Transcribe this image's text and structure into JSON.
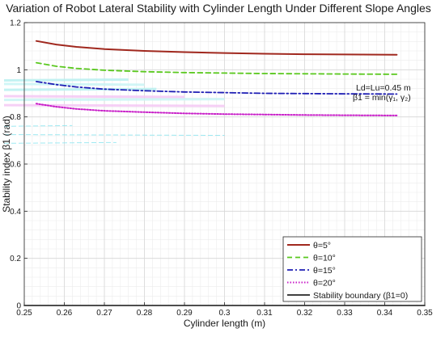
{
  "chart_data": {
    "type": "line",
    "title": "Variation of Robot Lateral Stability with Cylinder Length Under Different Slope Angles",
    "xlabel": "Cylinder length (m)",
    "ylabel": "Stability index β1 (rad)",
    "xlim": [
      0.25,
      0.35
    ],
    "ylim": [
      0,
      1.2
    ],
    "xticks": [
      0.25,
      0.26,
      0.27,
      0.28,
      0.29,
      0.3,
      0.31,
      0.32,
      0.33,
      0.34,
      0.35
    ],
    "xtick_labels": [
      "0.25",
      "0.26",
      "0.27",
      "0.28",
      "0.29",
      "0.3",
      "0.31",
      "0.32",
      "0.33",
      "0.34",
      "0.35"
    ],
    "yticks": [
      0,
      0.2,
      0.4,
      0.6,
      0.8,
      1,
      1.2
    ],
    "ytick_labels": [
      "0",
      "0.2",
      "0.4",
      "0.6",
      "0.8",
      "1",
      "1.2"
    ],
    "grid": true,
    "minor_grid": true,
    "legend_position": "bottom-right",
    "annotations": [
      "Ld=Lu=0.45 m",
      "β1 = min(γ₁, γ₂)"
    ],
    "series": [
      {
        "name": "θ=5°",
        "color": "#a0281e",
        "style": "solid",
        "x": [
          0.253,
          0.258,
          0.263,
          0.27,
          0.28,
          0.29,
          0.3,
          0.31,
          0.32,
          0.33,
          0.343
        ],
        "y": [
          1.122,
          1.107,
          1.097,
          1.088,
          1.08,
          1.075,
          1.071,
          1.068,
          1.066,
          1.065,
          1.064
        ]
      },
      {
        "name": "θ=10°",
        "color": "#5ac81e",
        "style": "dashed",
        "x": [
          0.253,
          0.258,
          0.263,
          0.27,
          0.28,
          0.29,
          0.3,
          0.31,
          0.32,
          0.33,
          0.343
        ],
        "y": [
          1.03,
          1.015,
          1.006,
          0.998,
          0.992,
          0.988,
          0.986,
          0.984,
          0.983,
          0.982,
          0.981
        ]
      },
      {
        "name": "θ=15°",
        "color": "#1e1eb4",
        "style": "dashdot",
        "x": [
          0.253,
          0.258,
          0.263,
          0.27,
          0.28,
          0.29,
          0.3,
          0.31,
          0.32,
          0.33,
          0.343
        ],
        "y": [
          0.95,
          0.937,
          0.927,
          0.918,
          0.911,
          0.906,
          0.903,
          0.9,
          0.899,
          0.898,
          0.897
        ]
      },
      {
        "name": "θ=20°",
        "color": "#c81ec8",
        "style": "dotted",
        "x": [
          0.253,
          0.258,
          0.263,
          0.27,
          0.28,
          0.29,
          0.3,
          0.31,
          0.32,
          0.33,
          0.343
        ],
        "y": [
          0.856,
          0.843,
          0.834,
          0.826,
          0.82,
          0.815,
          0.812,
          0.81,
          0.808,
          0.807,
          0.806
        ]
      },
      {
        "name": "Stability boundary (β1=0)",
        "color": "#000000",
        "style": "solid",
        "x": [
          0.25,
          0.35
        ],
        "y": [
          0,
          0
        ]
      }
    ]
  }
}
